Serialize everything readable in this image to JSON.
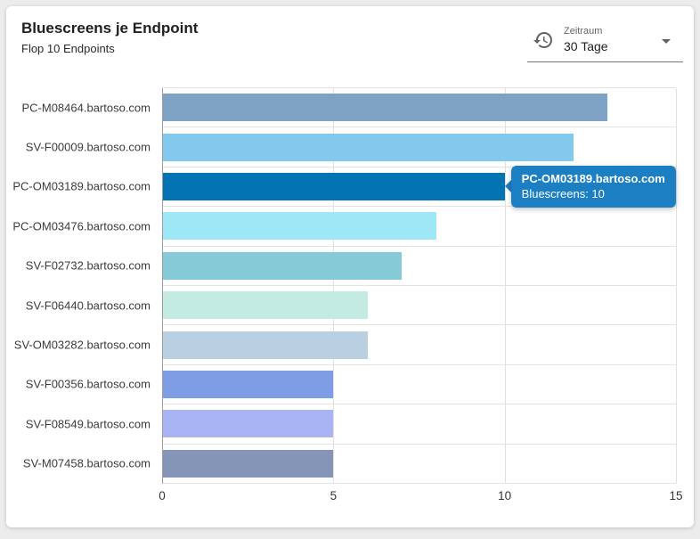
{
  "header": {
    "title": "Bluescreens je Endpoint",
    "subtitle": "Flop 10 Endpoints"
  },
  "period_select": {
    "label": "Zeitraum",
    "value": "30 Tage",
    "icon": "history-icon",
    "caret_icon": "chevron-down-icon"
  },
  "tooltip": {
    "title": "PC-OM03189.bartoso.com",
    "line": "Bluescreens: 10",
    "bg_color": "#1c7fc3"
  },
  "chart_data": {
    "type": "bar",
    "orientation": "horizontal",
    "title": "Bluescreens je Endpoint",
    "subtitle": "Flop 10 Endpoints",
    "xlabel": "",
    "ylabel": "",
    "categories": [
      "PC-M08464.bartoso.com",
      "SV-F00009.bartoso.com",
      "PC-OM03189.bartoso.com",
      "PC-OM03476.bartoso.com",
      "SV-F02732.bartoso.com",
      "SV-F06440.bartoso.com",
      "SV-OM03282.bartoso.com",
      "SV-F00356.bartoso.com",
      "SV-F08549.bartoso.com",
      "SV-M07458.bartoso.com"
    ],
    "values": [
      13,
      12,
      10,
      8,
      7,
      6,
      6,
      5,
      5,
      5
    ],
    "bar_colors": [
      "#7da2c3",
      "#83c9ee",
      "#0473b3",
      "#9de7f6",
      "#86c9d7",
      "#c3ebe1",
      "#b9cfe2",
      "#7f9de4",
      "#a8b4f4",
      "#8595b7"
    ],
    "xlim": [
      0,
      15
    ],
    "x_ticks": [
      0,
      5,
      10,
      15
    ],
    "grid": true,
    "legend": false,
    "highlighted_index": 2,
    "series_name": "Bluescreens"
  }
}
